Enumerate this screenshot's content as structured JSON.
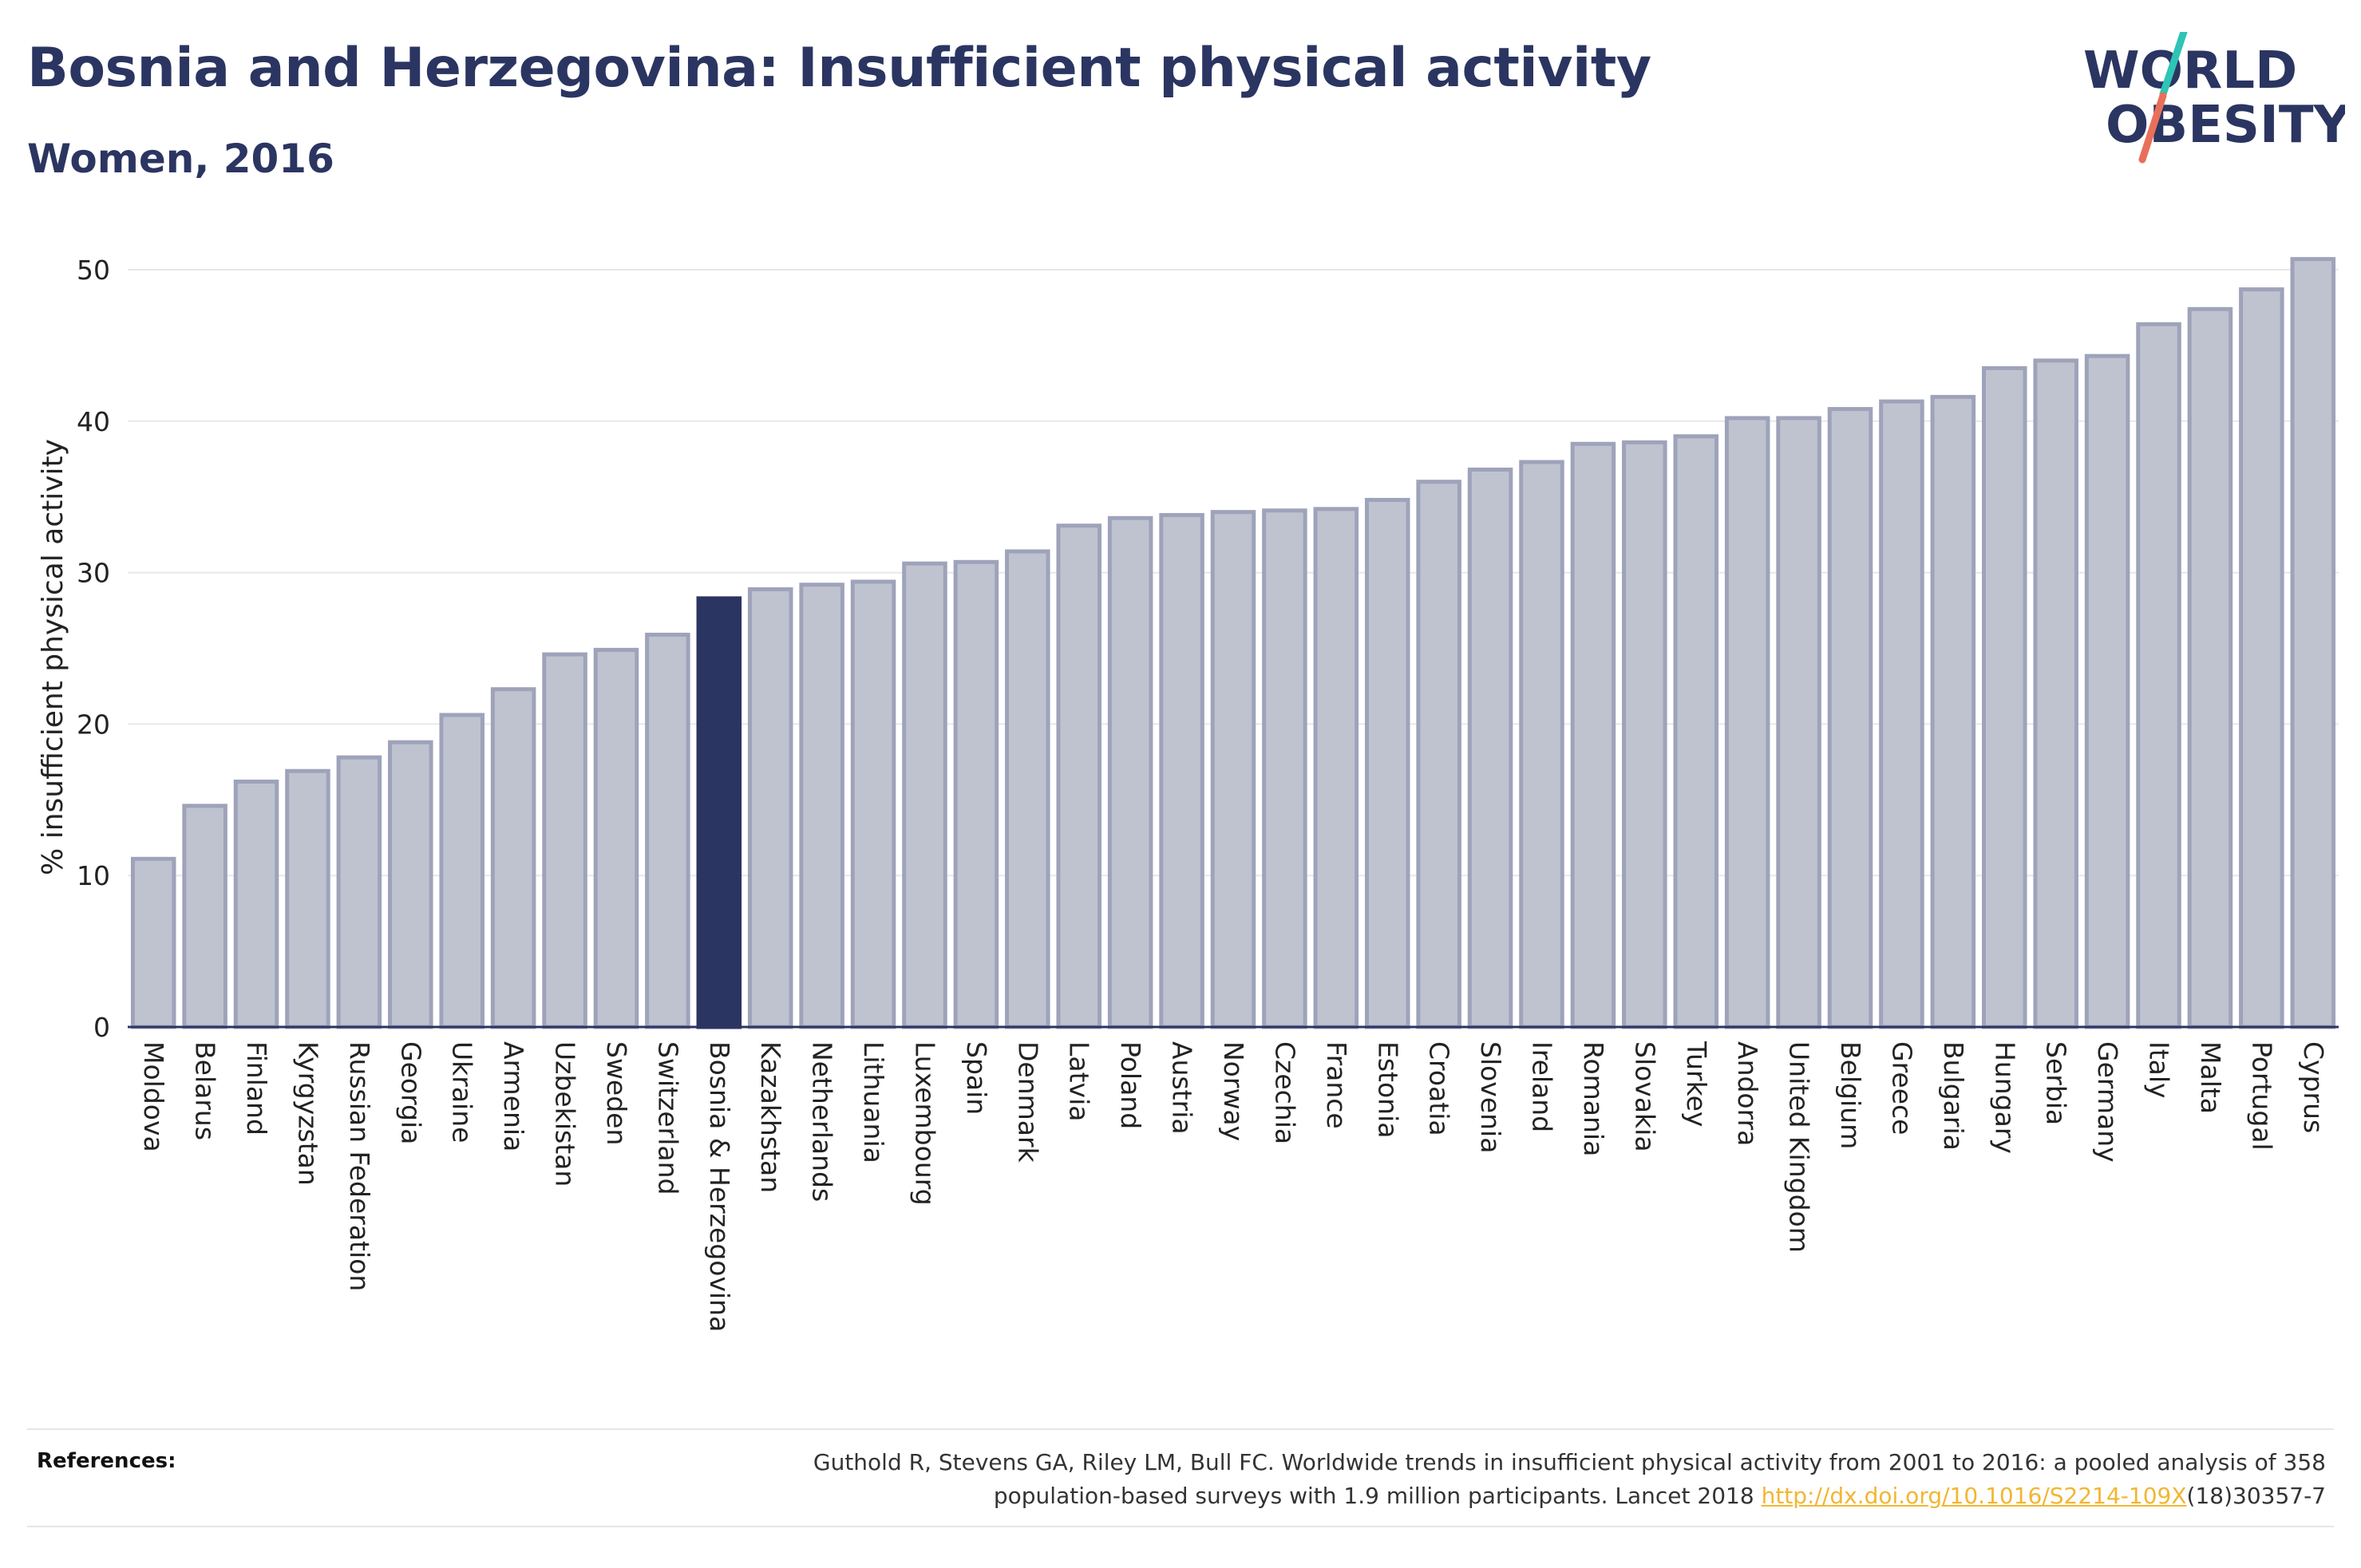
{
  "header": {
    "title": "Bosnia and Herzegovina: Insufficient physical activity",
    "subtitle": "Women, 2016"
  },
  "logo": {
    "line1": "WORLD",
    "line2": "OBESITY",
    "slash_colors": [
      "#2ec4b6",
      "#e8705a"
    ]
  },
  "colors": {
    "bar": "#bfc3d0",
    "bar_stroke": "#9ea3ba",
    "highlight": "#2b3561",
    "text": "#2b3561",
    "link": "#f2b632"
  },
  "chart_data": {
    "type": "bar",
    "title": "Bosnia and Herzegovina: Insufficient physical activity",
    "subtitle": "Women, 2016",
    "xlabel": "",
    "ylabel": "% insufficient physical activity",
    "ylim": [
      0,
      52
    ],
    "yticks": [
      0,
      10,
      20,
      30,
      40,
      50
    ],
    "grid": true,
    "highlight": "Bosnia & Herzegovina",
    "categories": [
      "Moldova",
      "Belarus",
      "Finland",
      "Kyrgyzstan",
      "Russian Federation",
      "Georgia",
      "Ukraine",
      "Armenia",
      "Uzbekistan",
      "Sweden",
      "Switzerland",
      "Bosnia & Herzegovina",
      "Kazakhstan",
      "Netherlands",
      "Lithuania",
      "Luxembourg",
      "Spain",
      "Denmark",
      "Latvia",
      "Poland",
      "Austria",
      "Norway",
      "Czechia",
      "France",
      "Estonia",
      "Croatia",
      "Slovenia",
      "Ireland",
      "Romania",
      "Slovakia",
      "Turkey",
      "Andorra",
      "United Kingdom",
      "Belgium",
      "Greece",
      "Bulgaria",
      "Hungary",
      "Serbia",
      "Germany",
      "Italy",
      "Malta",
      "Portugal",
      "Cyprus"
    ],
    "values": [
      11.1,
      14.6,
      16.2,
      16.9,
      17.8,
      18.8,
      20.6,
      22.3,
      24.6,
      24.9,
      25.9,
      28.3,
      28.9,
      29.2,
      29.4,
      30.6,
      30.7,
      31.4,
      33.1,
      33.6,
      33.8,
      34.0,
      34.1,
      34.2,
      34.8,
      36.0,
      36.8,
      37.3,
      38.5,
      38.6,
      39.0,
      40.2,
      40.2,
      40.8,
      41.3,
      41.6,
      43.5,
      44.0,
      44.3,
      46.4,
      47.4,
      48.7,
      50.7
    ]
  },
  "references": {
    "label": "References:",
    "line1": "Guthold R, Stevens GA, Riley LM, Bull FC. Worldwide trends in insufficient physical activity from 2001 to 2016: a pooled analysis of 358",
    "line2_prefix": "population-based surveys with 1.9 million participants. Lancet 2018 ",
    "link_text": "http://dx.doi.org/10.1016/S2214-109X",
    "line2_suffix": "(18)30357-7"
  }
}
